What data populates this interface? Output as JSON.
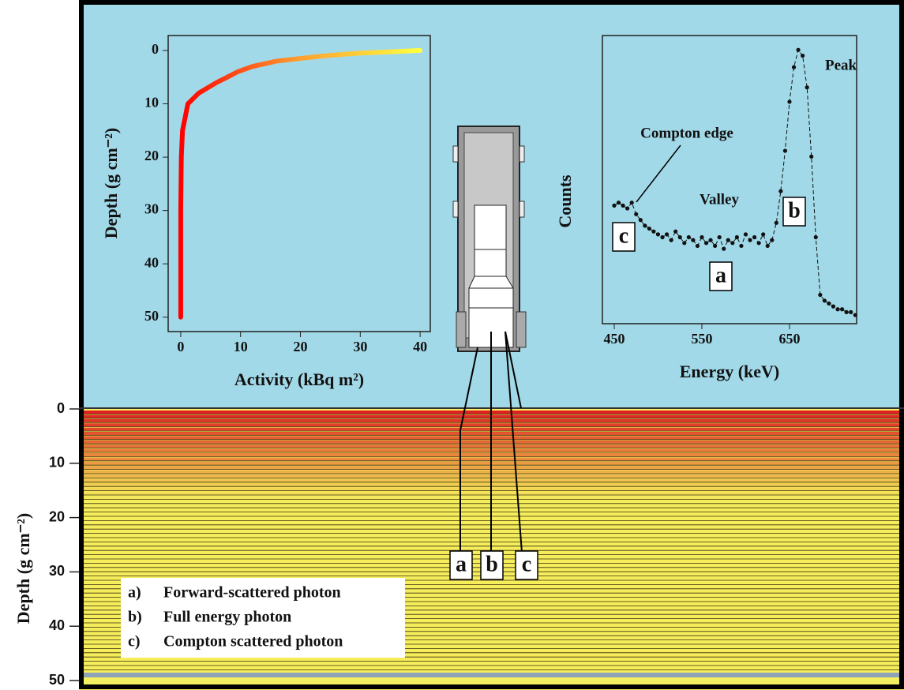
{
  "chart_data": [
    {
      "type": "line",
      "x_label": "Activity (kBq m²)",
      "y_label": "Depth (g cm⁻²)",
      "x": [
        40,
        30,
        24,
        16,
        12,
        9.5,
        7.8,
        6,
        3,
        1.2,
        0.3,
        0.1,
        0,
        0,
        0
      ],
      "values": [
        0,
        0.5,
        1,
        2,
        3,
        4,
        5,
        6,
        8,
        10,
        15,
        20,
        30,
        40,
        50
      ],
      "colors": [
        "#ffff40",
        "#ffa030",
        "#ff0000"
      ],
      "xlim": [
        -2.1,
        41.7
      ],
      "ylim": [
        -2.8,
        52.7
      ],
      "y_inverted": true,
      "xticks": [
        0,
        10,
        20,
        30,
        40
      ],
      "yticks": [
        0,
        10,
        20,
        30,
        40,
        50
      ]
    },
    {
      "type": "scatter",
      "x_label": "Energy (keV)",
      "y_label": "Counts",
      "x": [
        450,
        455,
        460,
        465,
        470,
        475,
        480,
        485,
        490,
        495,
        500,
        505,
        510,
        515,
        520,
        525,
        530,
        535,
        540,
        545,
        550,
        555,
        560,
        565,
        570,
        575,
        580,
        585,
        590,
        595,
        600,
        605,
        610,
        615,
        620,
        625,
        630,
        635,
        640,
        645,
        650,
        655,
        660,
        665,
        670,
        675,
        680,
        685,
        690,
        695,
        700,
        705,
        710,
        715,
        720,
        725
      ],
      "values": [
        41,
        42,
        41,
        40,
        42,
        38,
        36,
        34,
        33,
        32,
        31,
        30,
        31,
        29,
        32,
        30,
        28,
        30,
        29,
        27,
        30,
        28,
        29,
        27,
        30,
        26,
        29,
        28,
        30,
        27,
        31,
        29,
        30,
        28,
        31,
        27,
        29,
        35,
        46,
        60,
        77,
        89,
        95,
        93,
        82,
        58,
        30,
        10,
        8,
        7,
        6,
        5,
        5,
        4,
        4,
        3
      ],
      "color": "#111111",
      "xlim": [
        436.5,
        726.6
      ],
      "ylim": [
        0,
        100
      ],
      "xticks": [
        450,
        550,
        650
      ],
      "annotations": [
        "Peak",
        "Compton edge",
        "Valley"
      ],
      "boxed_labels": [
        "c",
        "a",
        "b"
      ]
    }
  ],
  "soil_axis": {
    "label": "Depth (g cm⁻²)",
    "ylim": [
      0,
      50
    ],
    "yticks": [
      0,
      10,
      20,
      30,
      40,
      50
    ]
  },
  "detector_labels": [
    "a",
    "b",
    "c"
  ],
  "legend": [
    {
      "key": "a)",
      "text": "Forward-scattered photon"
    },
    {
      "key": "b)",
      "text": "Full energy photon"
    },
    {
      "key": "c)",
      "text": "Compton scattered photon"
    }
  ]
}
